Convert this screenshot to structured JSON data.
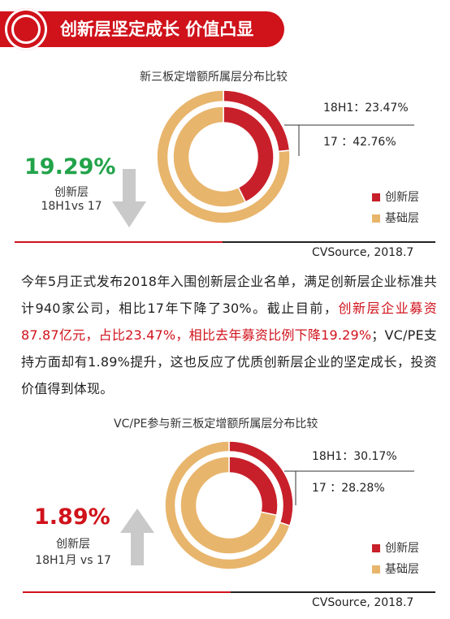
{
  "header": {
    "title": "创新层坚定成长 价值凸显"
  },
  "chart1": {
    "title": "新三板定增额所属层分布比较",
    "label_h1": "18H1：23.47%",
    "label_17": "17 ：42.76%",
    "big_value": "19.29%",
    "sub_label_1": "创新层",
    "sub_label_2": "18H1vs 17",
    "legend": [
      "创新层",
      "基础层"
    ],
    "source": "CVSource, 2018.7",
    "colors": {
      "innovation": "#c8202a",
      "basic": "#e8b56c",
      "big_value": "#22a34a",
      "arrow": "#c9c9c9"
    }
  },
  "chart2": {
    "title": "VC/PE参与新三板定增额所属层分布比较",
    "label_h1": "18H1：30.17%",
    "label_17": "17 ：28.28%",
    "big_value": "1.89%",
    "sub_label_1": "创新层",
    "sub_label_2": "18H1月 vs 17",
    "legend": [
      "创新层",
      "基础层"
    ],
    "source": "CVSource, 2018.7",
    "colors": {
      "innovation": "#c8202a",
      "basic": "#e8b56c",
      "big_value": "#d0121b",
      "arrow": "#c9c9c9"
    }
  },
  "chart_data": [
    {
      "type": "pie",
      "title": "新三板定增额所属层分布比较",
      "rings": [
        {
          "name": "18H1",
          "values": [
            23.47,
            76.53
          ]
        },
        {
          "name": "17",
          "values": [
            42.76,
            57.24
          ]
        }
      ],
      "categories": [
        "创新层",
        "基础层"
      ],
      "legend_position": "right"
    },
    {
      "type": "pie",
      "title": "VC/PE参与新三板定增额所属层分布比较",
      "rings": [
        {
          "name": "18H1",
          "values": [
            30.17,
            69.83
          ]
        },
        {
          "name": "17",
          "values": [
            28.28,
            71.72
          ]
        }
      ],
      "categories": [
        "创新层",
        "基础层"
      ],
      "legend_position": "right"
    }
  ],
  "paragraph": {
    "part1": "今年5月正式发布2018年入围创新层企业名单，满足创新层企业标准共计940家公司，相比17年下降了30%。截止目前，",
    "part2": "创新层企业募资87.87亿元，占比23.47%，相比去年募资比例下降19.29%",
    "part3": "；VC/PE支持方面却有1.89%提升，这也反应了优质创新层企业的坚定成长，投资价值得到体现。"
  }
}
